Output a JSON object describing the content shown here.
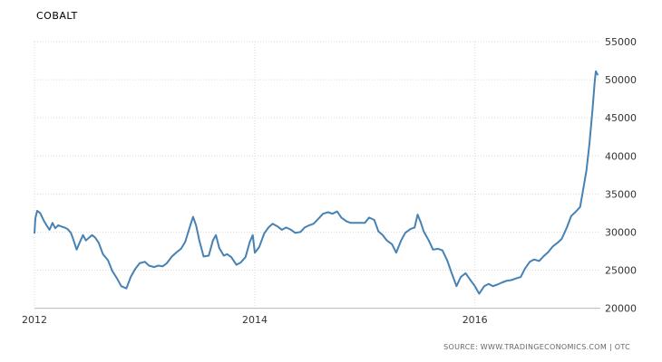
{
  "chart_data": {
    "type": "line",
    "title": "COBALT",
    "subtitle": "",
    "xlabel": "",
    "ylabel": "",
    "source": "SOURCE: WWW.TRADINGECONOMICS.COM | OTC",
    "x_ticks": [
      "2012",
      "2014",
      "2016"
    ],
    "y_ticks": [
      "20000",
      "25000",
      "30000",
      "35000",
      "40000",
      "45000",
      "50000",
      "55000"
    ],
    "xlim": [
      "2012-01-01",
      "2017-02-20"
    ],
    "ylim": [
      20000,
      55000
    ],
    "grid": true,
    "series": [
      {
        "name": "",
        "color": "#4682b4",
        "points": [
          [
            "2012-01-01",
            29800
          ],
          [
            "2012-01-04",
            31800
          ],
          [
            "2012-01-10",
            32800
          ],
          [
            "2012-01-20",
            32500
          ],
          [
            "2012-02-01",
            31500
          ],
          [
            "2012-02-10",
            30900
          ],
          [
            "2012-02-20",
            30300
          ],
          [
            "2012-03-01",
            31200
          ],
          [
            "2012-03-10",
            30500
          ],
          [
            "2012-03-20",
            30900
          ],
          [
            "2012-04-01",
            30700
          ],
          [
            "2012-04-10",
            30600
          ],
          [
            "2012-04-20",
            30400
          ],
          [
            "2012-05-01",
            29900
          ],
          [
            "2012-05-10",
            28900
          ],
          [
            "2012-05-20",
            27700
          ],
          [
            "2012-06-01",
            28800
          ],
          [
            "2012-06-10",
            29600
          ],
          [
            "2012-06-20",
            28900
          ],
          [
            "2012-07-01",
            29300
          ],
          [
            "2012-07-10",
            29600
          ],
          [
            "2012-07-20",
            29300
          ],
          [
            "2012-08-01",
            28600
          ],
          [
            "2012-08-15",
            27100
          ],
          [
            "2012-09-01",
            26300
          ],
          [
            "2012-09-15",
            24900
          ],
          [
            "2012-10-01",
            23900
          ],
          [
            "2012-10-15",
            22900
          ],
          [
            "2012-11-01",
            22600
          ],
          [
            "2012-11-15",
            24100
          ],
          [
            "2012-12-01",
            25200
          ],
          [
            "2012-12-15",
            25900
          ],
          [
            "2013-01-01",
            26100
          ],
          [
            "2013-01-15",
            25600
          ],
          [
            "2013-02-01",
            25400
          ],
          [
            "2013-02-15",
            25600
          ],
          [
            "2013-03-01",
            25500
          ],
          [
            "2013-03-15",
            25900
          ],
          [
            "2013-04-01",
            26800
          ],
          [
            "2013-04-15",
            27300
          ],
          [
            "2013-05-01",
            27800
          ],
          [
            "2013-05-15",
            28700
          ],
          [
            "2013-06-01",
            30900
          ],
          [
            "2013-06-10",
            32000
          ],
          [
            "2013-06-20",
            30900
          ],
          [
            "2013-07-01",
            28900
          ],
          [
            "2013-07-15",
            26800
          ],
          [
            "2013-08-01",
            26900
          ],
          [
            "2013-08-15",
            28900
          ],
          [
            "2013-08-25",
            29600
          ],
          [
            "2013-09-05",
            27900
          ],
          [
            "2013-09-20",
            26900
          ],
          [
            "2013-10-01",
            27100
          ],
          [
            "2013-10-15",
            26700
          ],
          [
            "2013-11-01",
            25700
          ],
          [
            "2013-11-15",
            26000
          ],
          [
            "2013-12-01",
            26700
          ],
          [
            "2013-12-15",
            28700
          ],
          [
            "2013-12-25",
            29600
          ],
          [
            "2014-01-01",
            27300
          ],
          [
            "2014-01-15",
            28000
          ],
          [
            "2014-02-01",
            29800
          ],
          [
            "2014-02-15",
            30600
          ],
          [
            "2014-03-01",
            31100
          ],
          [
            "2014-03-15",
            30800
          ],
          [
            "2014-04-01",
            30300
          ],
          [
            "2014-04-15",
            30600
          ],
          [
            "2014-05-01",
            30300
          ],
          [
            "2014-05-15",
            29900
          ],
          [
            "2014-06-01",
            30000
          ],
          [
            "2014-06-15",
            30600
          ],
          [
            "2014-07-01",
            30900
          ],
          [
            "2014-07-15",
            31100
          ],
          [
            "2014-08-01",
            31800
          ],
          [
            "2014-08-15",
            32400
          ],
          [
            "2014-09-01",
            32600
          ],
          [
            "2014-09-15",
            32400
          ],
          [
            "2014-10-01",
            32700
          ],
          [
            "2014-10-15",
            31900
          ],
          [
            "2014-11-01",
            31400
          ],
          [
            "2014-11-15",
            31200
          ],
          [
            "2014-12-01",
            31200
          ],
          [
            "2014-12-15",
            31200
          ],
          [
            "2015-01-01",
            31200
          ],
          [
            "2015-01-15",
            31900
          ],
          [
            "2015-02-01",
            31600
          ],
          [
            "2015-02-15",
            30100
          ],
          [
            "2015-03-01",
            29600
          ],
          [
            "2015-03-15",
            28900
          ],
          [
            "2015-04-01",
            28400
          ],
          [
            "2015-04-15",
            27300
          ],
          [
            "2015-05-01",
            28900
          ],
          [
            "2015-05-15",
            29900
          ],
          [
            "2015-06-01",
            30400
          ],
          [
            "2015-06-15",
            30600
          ],
          [
            "2015-06-25",
            32300
          ],
          [
            "2015-07-05",
            31300
          ],
          [
            "2015-07-15",
            30100
          ],
          [
            "2015-08-01",
            28900
          ],
          [
            "2015-08-15",
            27700
          ],
          [
            "2015-09-01",
            27800
          ],
          [
            "2015-09-15",
            27600
          ],
          [
            "2015-10-01",
            26300
          ],
          [
            "2015-10-15",
            24700
          ],
          [
            "2015-11-01",
            22900
          ],
          [
            "2015-11-15",
            24100
          ],
          [
            "2015-12-01",
            24600
          ],
          [
            "2015-12-15",
            23800
          ],
          [
            "2016-01-01",
            22900
          ],
          [
            "2016-01-15",
            21900
          ],
          [
            "2016-02-01",
            22900
          ],
          [
            "2016-02-15",
            23200
          ],
          [
            "2016-03-01",
            22900
          ],
          [
            "2016-03-15",
            23100
          ],
          [
            "2016-04-01",
            23400
          ],
          [
            "2016-04-15",
            23600
          ],
          [
            "2016-05-01",
            23700
          ],
          [
            "2016-05-15",
            23900
          ],
          [
            "2016-06-01",
            24100
          ],
          [
            "2016-06-15",
            25200
          ],
          [
            "2016-07-01",
            26100
          ],
          [
            "2016-07-15",
            26400
          ],
          [
            "2016-08-01",
            26200
          ],
          [
            "2016-08-15",
            26800
          ],
          [
            "2016-09-01",
            27400
          ],
          [
            "2016-09-15",
            28100
          ],
          [
            "2016-10-01",
            28600
          ],
          [
            "2016-10-15",
            29100
          ],
          [
            "2016-11-01",
            30600
          ],
          [
            "2016-11-15",
            32100
          ],
          [
            "2016-12-01",
            32700
          ],
          [
            "2016-12-15",
            33300
          ],
          [
            "2016-12-25",
            35600
          ],
          [
            "2017-01-05",
            38100
          ],
          [
            "2017-01-15",
            41600
          ],
          [
            "2017-01-25",
            46100
          ],
          [
            "2017-02-01",
            49600
          ],
          [
            "2017-02-05",
            51100
          ],
          [
            "2017-02-12",
            50600
          ]
        ]
      }
    ]
  }
}
